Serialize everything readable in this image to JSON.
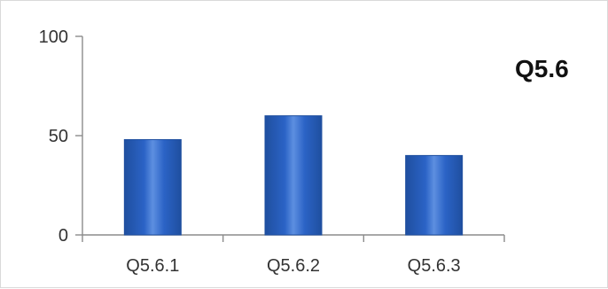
{
  "chart_data": {
    "type": "bar",
    "title": "Q5.6",
    "xlabel": "",
    "ylabel": "",
    "categories": [
      "Q5.6.1",
      "Q5.6.2",
      "Q5.6.3"
    ],
    "values": [
      48,
      60,
      40
    ],
    "ylim": [
      0,
      100
    ],
    "yticks": [
      "0",
      "50",
      "100"
    ],
    "grid": false,
    "legend": "none",
    "colors": {
      "bar_top": "#5d8fe0",
      "bar_mid": "#2b63c6",
      "bar_bottom": "#1f4f9f",
      "axis": "#8c8c8c",
      "text": "#333333"
    }
  }
}
